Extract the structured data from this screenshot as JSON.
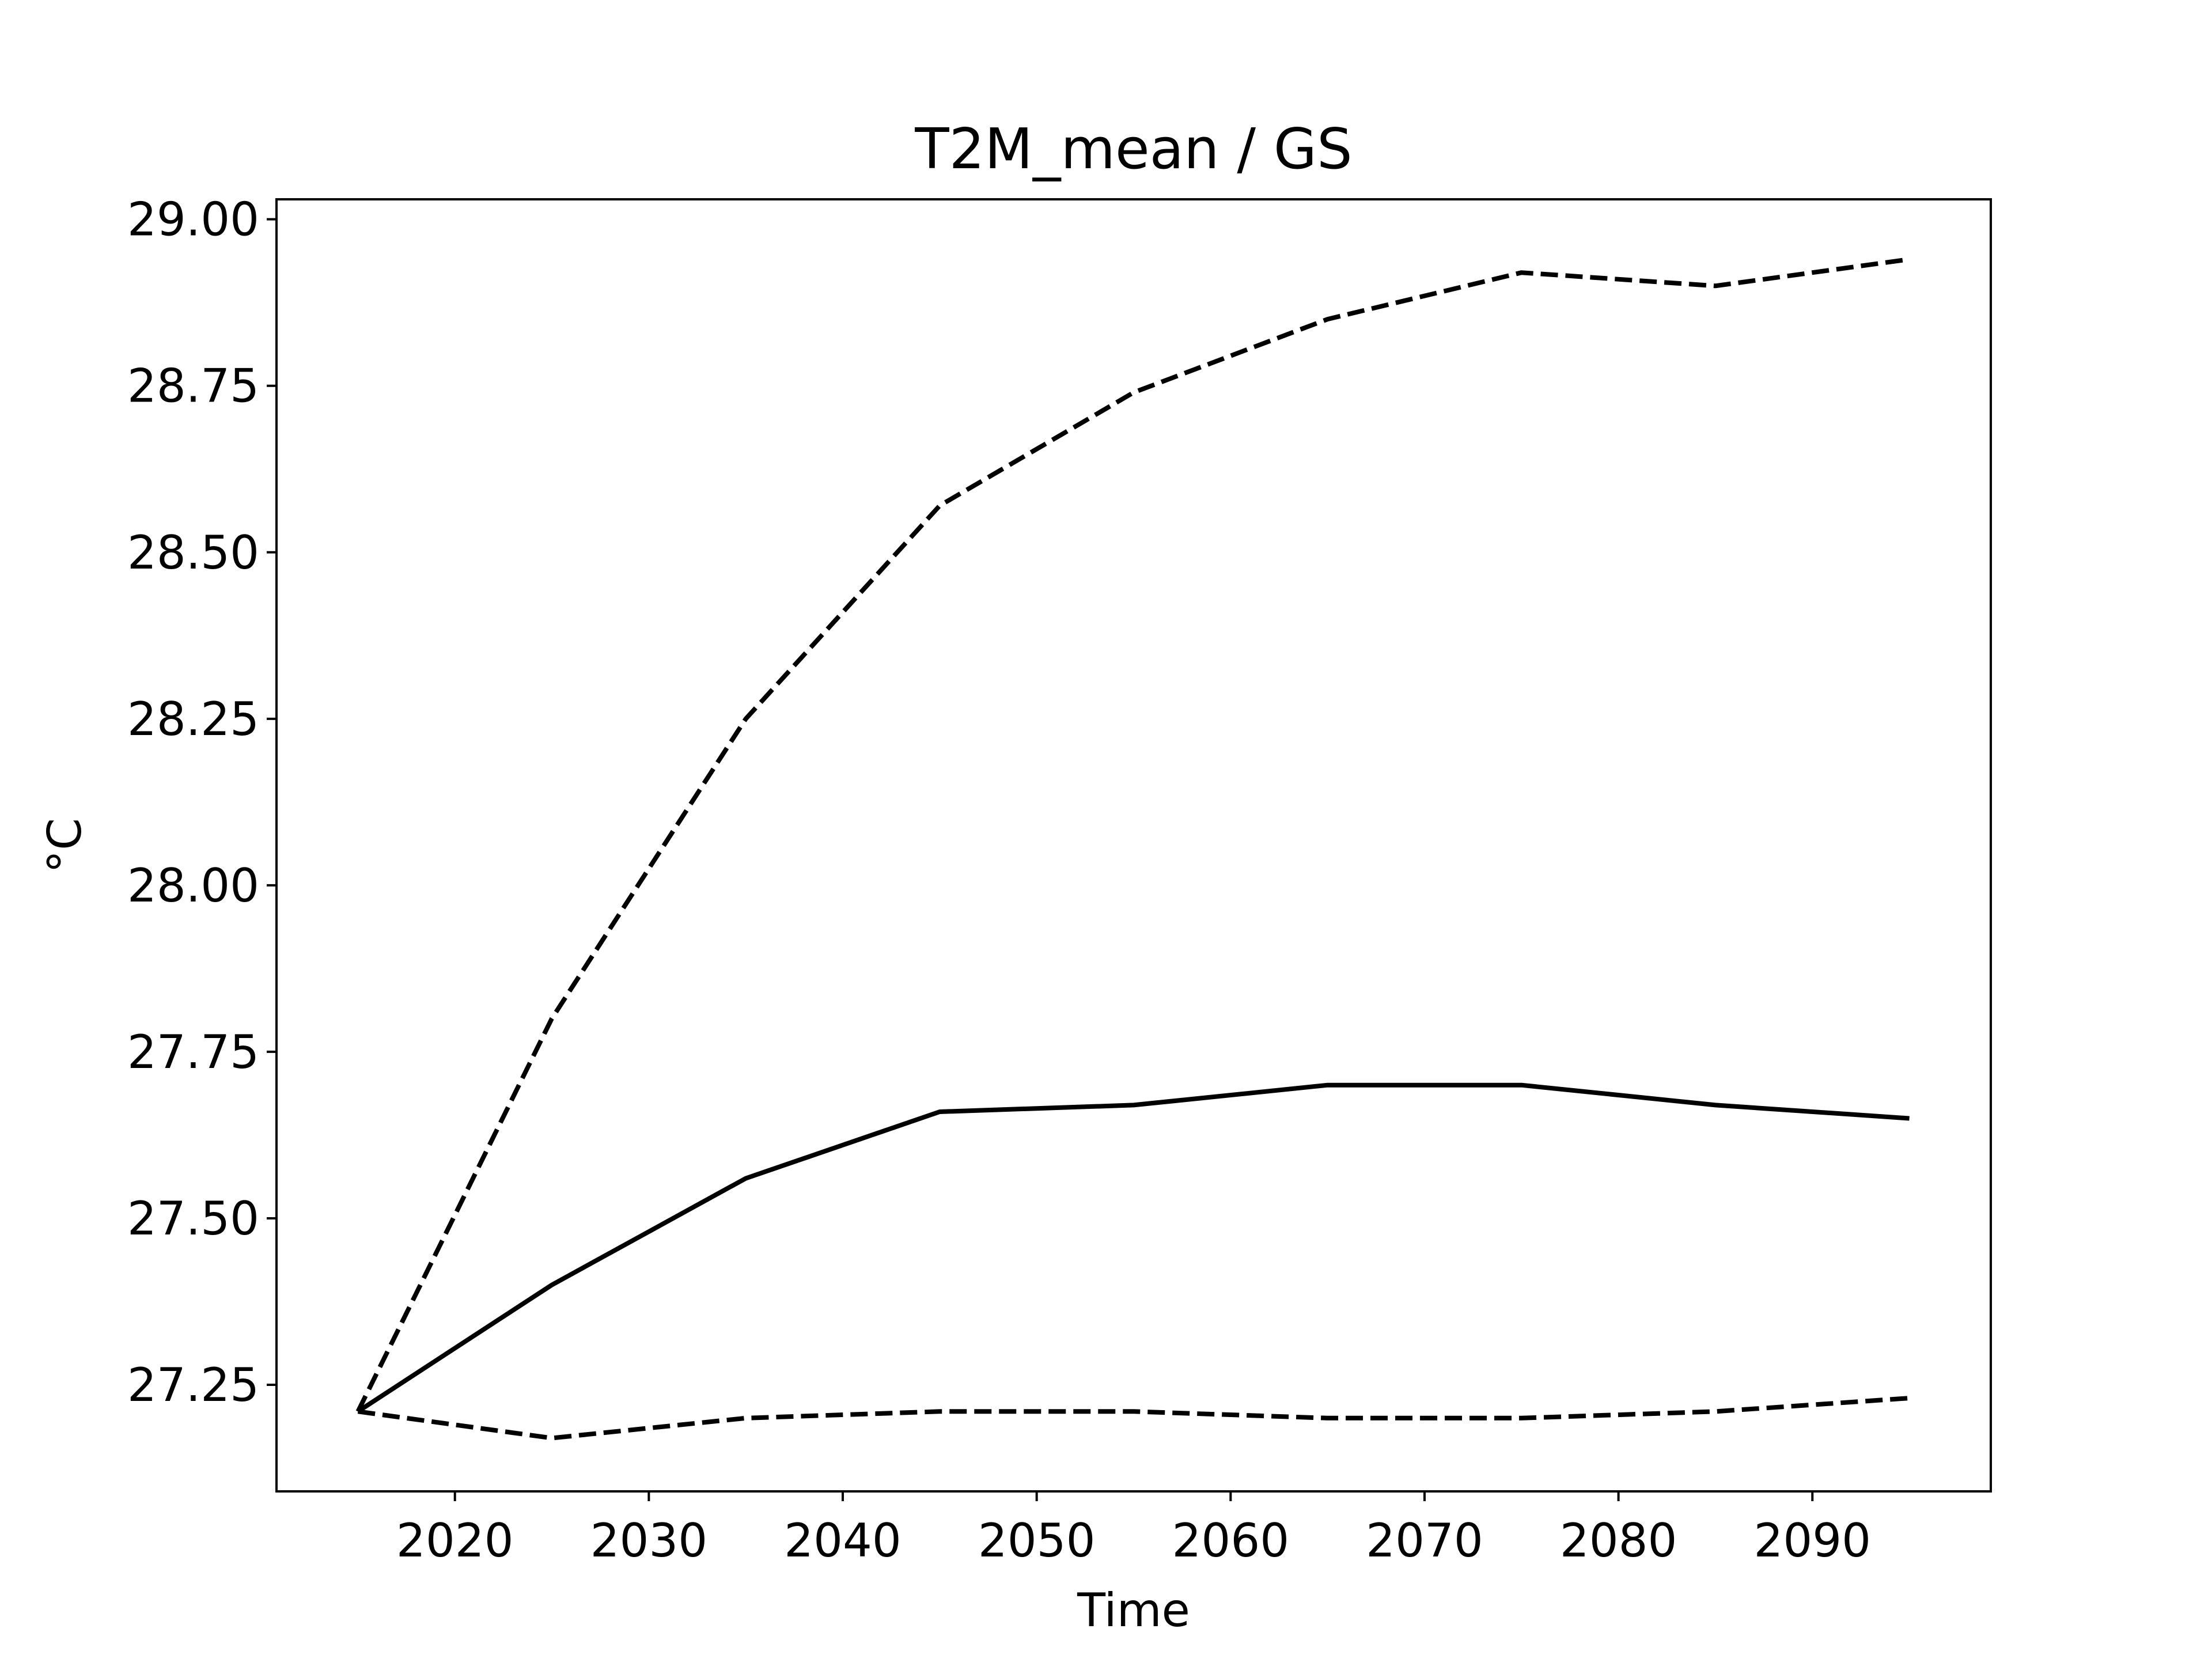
{
  "chart_data": {
    "type": "line",
    "title": "T2M_mean / GS",
    "xlabel": "Time",
    "ylabel": "°C",
    "x": [
      2015,
      2025,
      2035,
      2045,
      2055,
      2065,
      2075,
      2085,
      2095
    ],
    "xlim": [
      2010.8,
      2099.2
    ],
    "ylim": [
      27.09,
      29.03
    ],
    "xticks": [
      2020,
      2030,
      2040,
      2050,
      2060,
      2070,
      2080,
      2090
    ],
    "yticks": [
      27.25,
      27.5,
      27.75,
      28.0,
      28.25,
      28.5,
      28.75,
      29.0
    ],
    "xtick_labels": [
      "2020",
      "2030",
      "2040",
      "2050",
      "2060",
      "2070",
      "2080",
      "2090"
    ],
    "ytick_labels": [
      "27.25",
      "27.50",
      "27.75",
      "28.00",
      "28.25",
      "28.50",
      "28.75",
      "29.00"
    ],
    "grid": false,
    "series": [
      {
        "style": "solid",
        "color": "#000000",
        "values": [
          27.21,
          27.4,
          27.56,
          27.66,
          27.67,
          27.7,
          27.7,
          27.67,
          27.65
        ]
      },
      {
        "style": "dashed",
        "color": "#000000",
        "values": [
          27.21,
          27.8,
          28.25,
          28.57,
          28.74,
          28.85,
          28.92,
          28.9,
          28.94
        ]
      },
      {
        "style": "dashed",
        "color": "#000000",
        "values": [
          27.21,
          27.17,
          27.2,
          27.21,
          27.21,
          27.2,
          27.2,
          27.21,
          27.23
        ]
      }
    ]
  }
}
